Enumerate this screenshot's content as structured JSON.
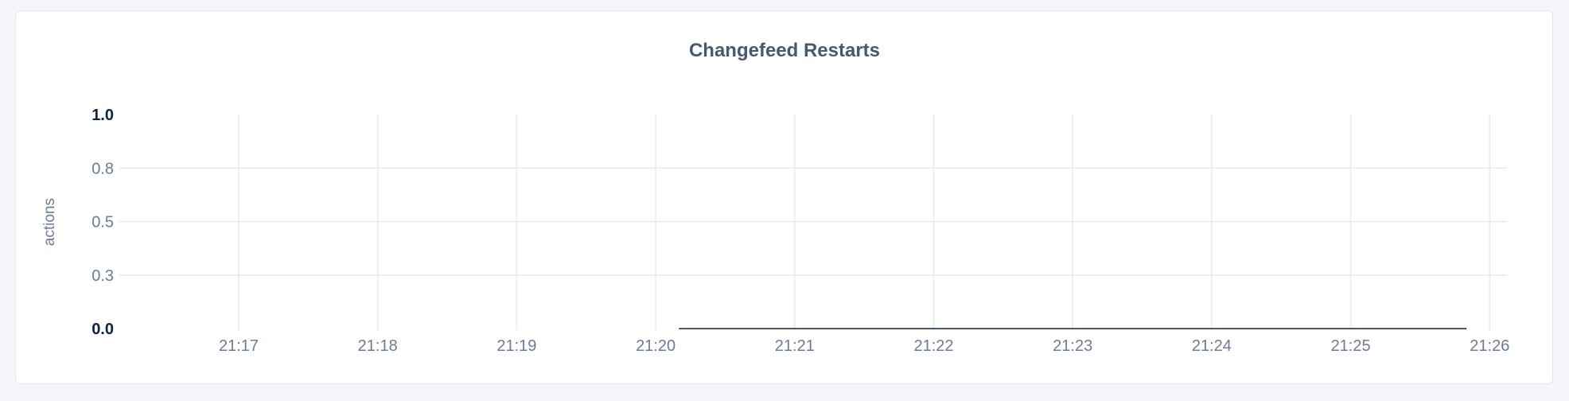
{
  "chart_data": {
    "type": "line",
    "title": "Changefeed Restarts",
    "xlabel": "",
    "ylabel": "actions",
    "ylim": [
      0,
      1.0
    ],
    "y_ticks": [
      {
        "value": 0,
        "label": "0.0",
        "bold": true
      },
      {
        "value": 0.25,
        "label": "0.3",
        "bold": false
      },
      {
        "value": 0.5,
        "label": "0.5",
        "bold": false
      },
      {
        "value": 0.75,
        "label": "0.8",
        "bold": false
      },
      {
        "value": 1.0,
        "label": "1.0",
        "bold": true
      }
    ],
    "x_ticks": [
      "21:17",
      "21:18",
      "21:19",
      "21:20",
      "21:21",
      "21:22",
      "21:23",
      "21:24",
      "21:25",
      "21:26"
    ],
    "grid": true,
    "series": [
      {
        "color": "#475872",
        "x": [
          "21:20:10",
          "21:21:00",
          "21:22:00",
          "21:23:00",
          "21:24:00",
          "21:25:00",
          "21:25:50"
        ],
        "y": [
          0,
          0,
          0,
          0,
          0,
          0,
          0
        ]
      }
    ]
  }
}
